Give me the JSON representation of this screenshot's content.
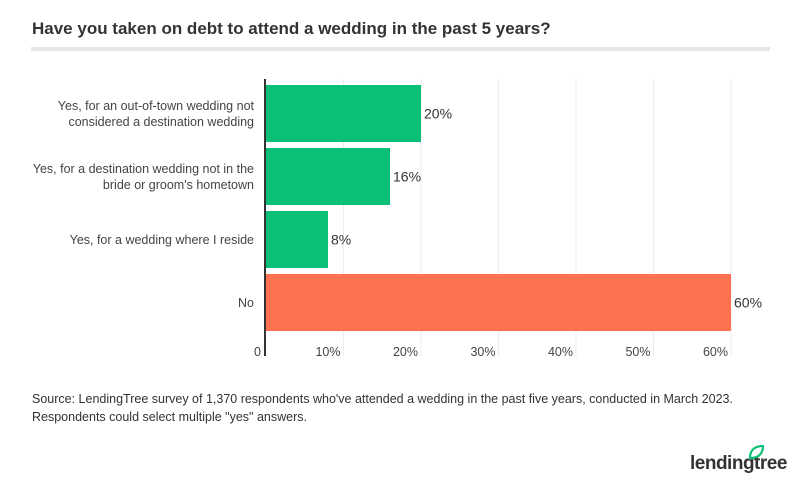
{
  "title": "Have you taken on debt to attend a wedding in the past 5 years?",
  "chart_data": {
    "type": "bar",
    "orientation": "horizontal",
    "categories": [
      [
        "Yes, for an out-of-town wedding not",
        "considered a destination wedding"
      ],
      [
        "Yes, for a destination wedding not in the",
        "bride or groom's hometown"
      ],
      [
        "Yes, for a wedding where I reside"
      ],
      [
        "No"
      ]
    ],
    "values": [
      20,
      16,
      8,
      60
    ],
    "data_labels": [
      "20%",
      "16%",
      "8%",
      "60%"
    ],
    "colors": [
      "#0bbf77",
      "#0bbf77",
      "#0bbf77",
      "#ff7250"
    ],
    "xlim": [
      0,
      60
    ],
    "x_ticks": [
      0,
      10,
      20,
      30,
      40,
      50,
      60
    ],
    "x_tick_labels": [
      "0",
      "10%",
      "20%",
      "30%",
      "40%",
      "50%",
      "60%"
    ],
    "grid": "vertical",
    "title": "Have you taken on debt to attend a wedding in the past 5 years?"
  },
  "source": [
    "Source: LendingTree survey of 1,370 respondents who've attended a wedding in the past five years, conducted in March 2023.",
    "Respondents could select multiple \"yes\" answers."
  ],
  "logo": {
    "text": "lendingtree",
    "leaf_color": "#0bbf77"
  }
}
